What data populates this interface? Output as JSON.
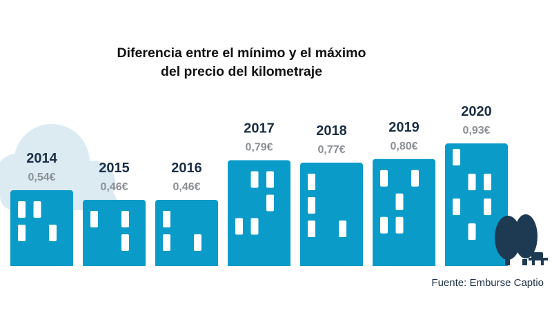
{
  "chart_data": {
    "type": "bar",
    "title": "Diferencia entre el mínimo y el máximo del precio del kilometraje",
    "title_lines": [
      "Diferencia entre el mínimo y el máximo",
      "del precio del kilometraje"
    ],
    "categories": [
      "2014",
      "2015",
      "2016",
      "2017",
      "2018",
      "2019",
      "2020"
    ],
    "values": [
      0.54,
      0.46,
      0.46,
      0.79,
      0.77,
      0.8,
      0.93
    ],
    "value_labels": [
      "0,54€",
      "0,46€",
      "0,46€",
      "0,79€",
      "0,77€",
      "0,80€",
      "0,93€"
    ],
    "unit": "€",
    "grid": false,
    "legend": "none",
    "style": "buildings"
  },
  "source": "Fuente: Emburse Captio",
  "colors": {
    "building": "#0a9bc9",
    "window": "#ffffff",
    "text_dark": "#1b2f45",
    "value_grey": "#8a8f94",
    "cloud": "#dcebf2",
    "tree": "#1e3a52"
  }
}
